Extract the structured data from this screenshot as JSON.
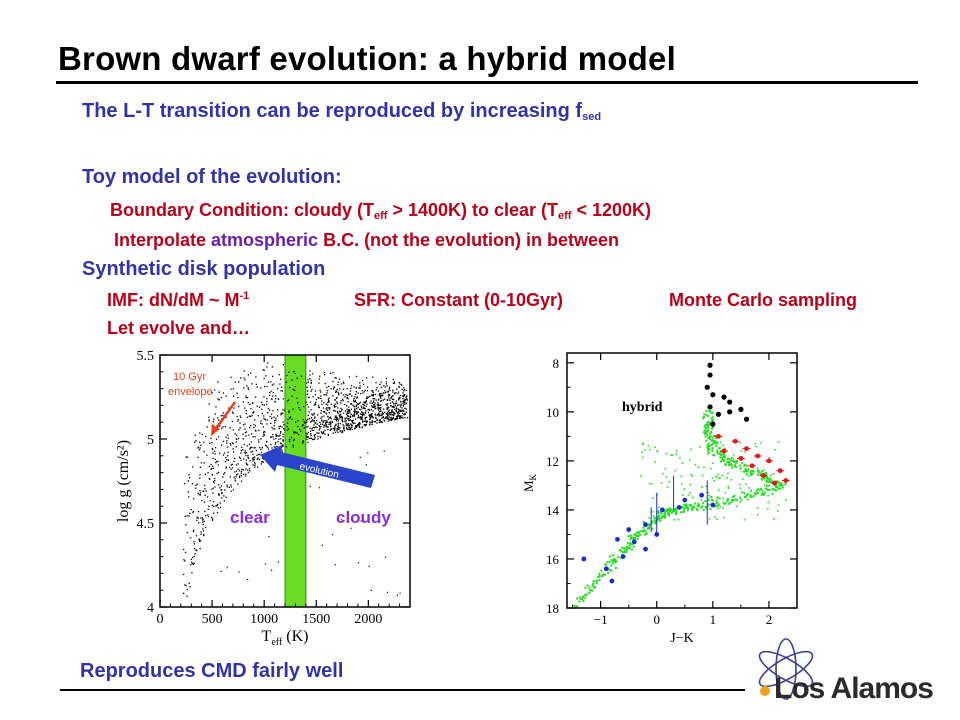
{
  "slide": {
    "title": "Brown dwarf evolution: a hybrid model",
    "line1": {
      "text": "The L-T transition can be reproduced by increasing f",
      "sub": "sed"
    },
    "toy_heading": "Toy model of the evolution:",
    "boundary": {
      "part1": "Boundary Condition: cloudy (T",
      "sub1": "eff",
      "part2": " > 1400K) to clear (T",
      "sub2": "eff",
      "part3": " < 1200K)"
    },
    "interpolate": {
      "part1": "Interpolate ",
      "highlight": "atmospheric",
      "part2": " B.C. (not the evolution) in between"
    },
    "synthetic_heading": "Synthetic disk population",
    "imf": {
      "text": "IMF: dN/dM ~ M",
      "sup": "-1"
    },
    "sfr": "SFR: Constant (0-10Gyr)",
    "monte_carlo": "Monte Carlo sampling",
    "let_evolve": "Let evolve and…",
    "conclusion": "Reproduces CMD fairly well",
    "logo_text": "Los Alamos",
    "colors": {
      "blue_text": "#3333a8",
      "red_text": "#b8001a",
      "band": "#66dd22",
      "arrow": "#2a44cc",
      "annotation": "#e0401a"
    }
  },
  "chart_data": [
    {
      "type": "scatter",
      "title": "",
      "xlabel": "T_eff (K)",
      "ylabel": "log g (cm/s²)",
      "x_ticks": [
        "0",
        "500",
        "1000",
        "1500",
        "2000"
      ],
      "y_ticks": [
        "4",
        "4.5",
        "5",
        "5.5"
      ],
      "xlim": [
        0,
        2400
      ],
      "ylim": [
        4,
        5.5
      ],
      "band": {
        "from": 1200,
        "to": 1400
      },
      "annotations": {
        "envelope": "10 Gyr envelope",
        "envelope_line1": "10 Gyr",
        "envelope_line2": "envelope",
        "arrow_label": "evolution",
        "clear": "clear",
        "cloudy": "cloudy"
      },
      "upper_envelope": [
        [
          250,
          5.06
        ],
        [
          400,
          5.28
        ],
        [
          550,
          5.38
        ],
        [
          700,
          5.44
        ],
        [
          900,
          5.47
        ],
        [
          1100,
          5.46
        ],
        [
          1300,
          5.44
        ],
        [
          1500,
          5.42
        ],
        [
          1800,
          5.39
        ],
        [
          2100,
          5.37
        ],
        [
          2350,
          5.36
        ]
      ],
      "lower_envelope": [
        [
          250,
          4.04
        ],
        [
          350,
          4.3
        ],
        [
          500,
          4.52
        ],
        [
          700,
          4.7
        ],
        [
          900,
          4.82
        ],
        [
          1100,
          4.9
        ],
        [
          1300,
          4.96
        ],
        [
          1500,
          5.0
        ],
        [
          1800,
          5.05
        ],
        [
          2100,
          5.1
        ],
        [
          2350,
          5.13
        ]
      ]
    },
    {
      "type": "scatter",
      "title": "",
      "label": "hybrid",
      "xlabel": "J−K",
      "ylabel": "M_K",
      "x_ticks": [
        "−1",
        "0",
        "1",
        "2"
      ],
      "y_ticks": [
        "8",
        "10",
        "12",
        "14",
        "16",
        "18"
      ],
      "xlim": [
        -1.6,
        2.5
      ],
      "ylim": [
        18,
        7.6
      ],
      "model_sequence": [
        [
          -1.4,
          17.8
        ],
        [
          -1.0,
          16.6
        ],
        [
          -0.6,
          15.6
        ],
        [
          -0.3,
          14.9
        ],
        [
          0.0,
          14.2
        ],
        [
          0.3,
          14.0
        ],
        [
          0.8,
          13.8
        ],
        [
          1.5,
          13.4
        ],
        [
          2.2,
          13.0
        ],
        [
          1.8,
          12.5
        ],
        [
          1.3,
          12.0
        ],
        [
          1.0,
          11.5
        ],
        [
          0.9,
          10.8
        ],
        [
          0.9,
          10.0
        ]
      ],
      "black_points": [
        [
          0.95,
          8.1
        ],
        [
          0.95,
          8.5
        ],
        [
          0.9,
          9.0
        ],
        [
          1.0,
          9.3
        ],
        [
          0.95,
          9.8
        ],
        [
          1.2,
          9.4
        ],
        [
          1.3,
          9.6
        ],
        [
          1.5,
          9.9
        ],
        [
          1.1,
          10.1
        ],
        [
          1.0,
          10.5
        ],
        [
          1.3,
          10.0
        ],
        [
          1.6,
          10.3
        ]
      ],
      "red_points": [
        [
          1.1,
          11.0
        ],
        [
          1.4,
          11.2
        ],
        [
          1.6,
          11.5
        ],
        [
          1.8,
          11.8
        ],
        [
          2.0,
          12.0
        ],
        [
          2.2,
          12.4
        ],
        [
          2.3,
          12.8
        ],
        [
          1.9,
          12.6
        ],
        [
          1.5,
          11.9
        ],
        [
          1.2,
          11.6
        ],
        [
          2.1,
          12.9
        ],
        [
          1.7,
          12.2
        ]
      ],
      "blue_points": [
        [
          -1.3,
          16.0
        ],
        [
          -0.9,
          16.4
        ],
        [
          -0.8,
          16.9
        ],
        [
          -0.6,
          15.9
        ],
        [
          -0.4,
          15.3
        ],
        [
          -0.2,
          14.6
        ],
        [
          -0.2,
          15.6
        ],
        [
          0.1,
          14.0
        ],
        [
          0.5,
          13.6
        ],
        [
          0.8,
          13.4
        ],
        [
          1.0,
          13.8
        ],
        [
          -0.5,
          14.8
        ],
        [
          -0.7,
          15.2
        ],
        [
          0.4,
          13.9
        ],
        [
          0.0,
          15.0
        ]
      ]
    }
  ]
}
